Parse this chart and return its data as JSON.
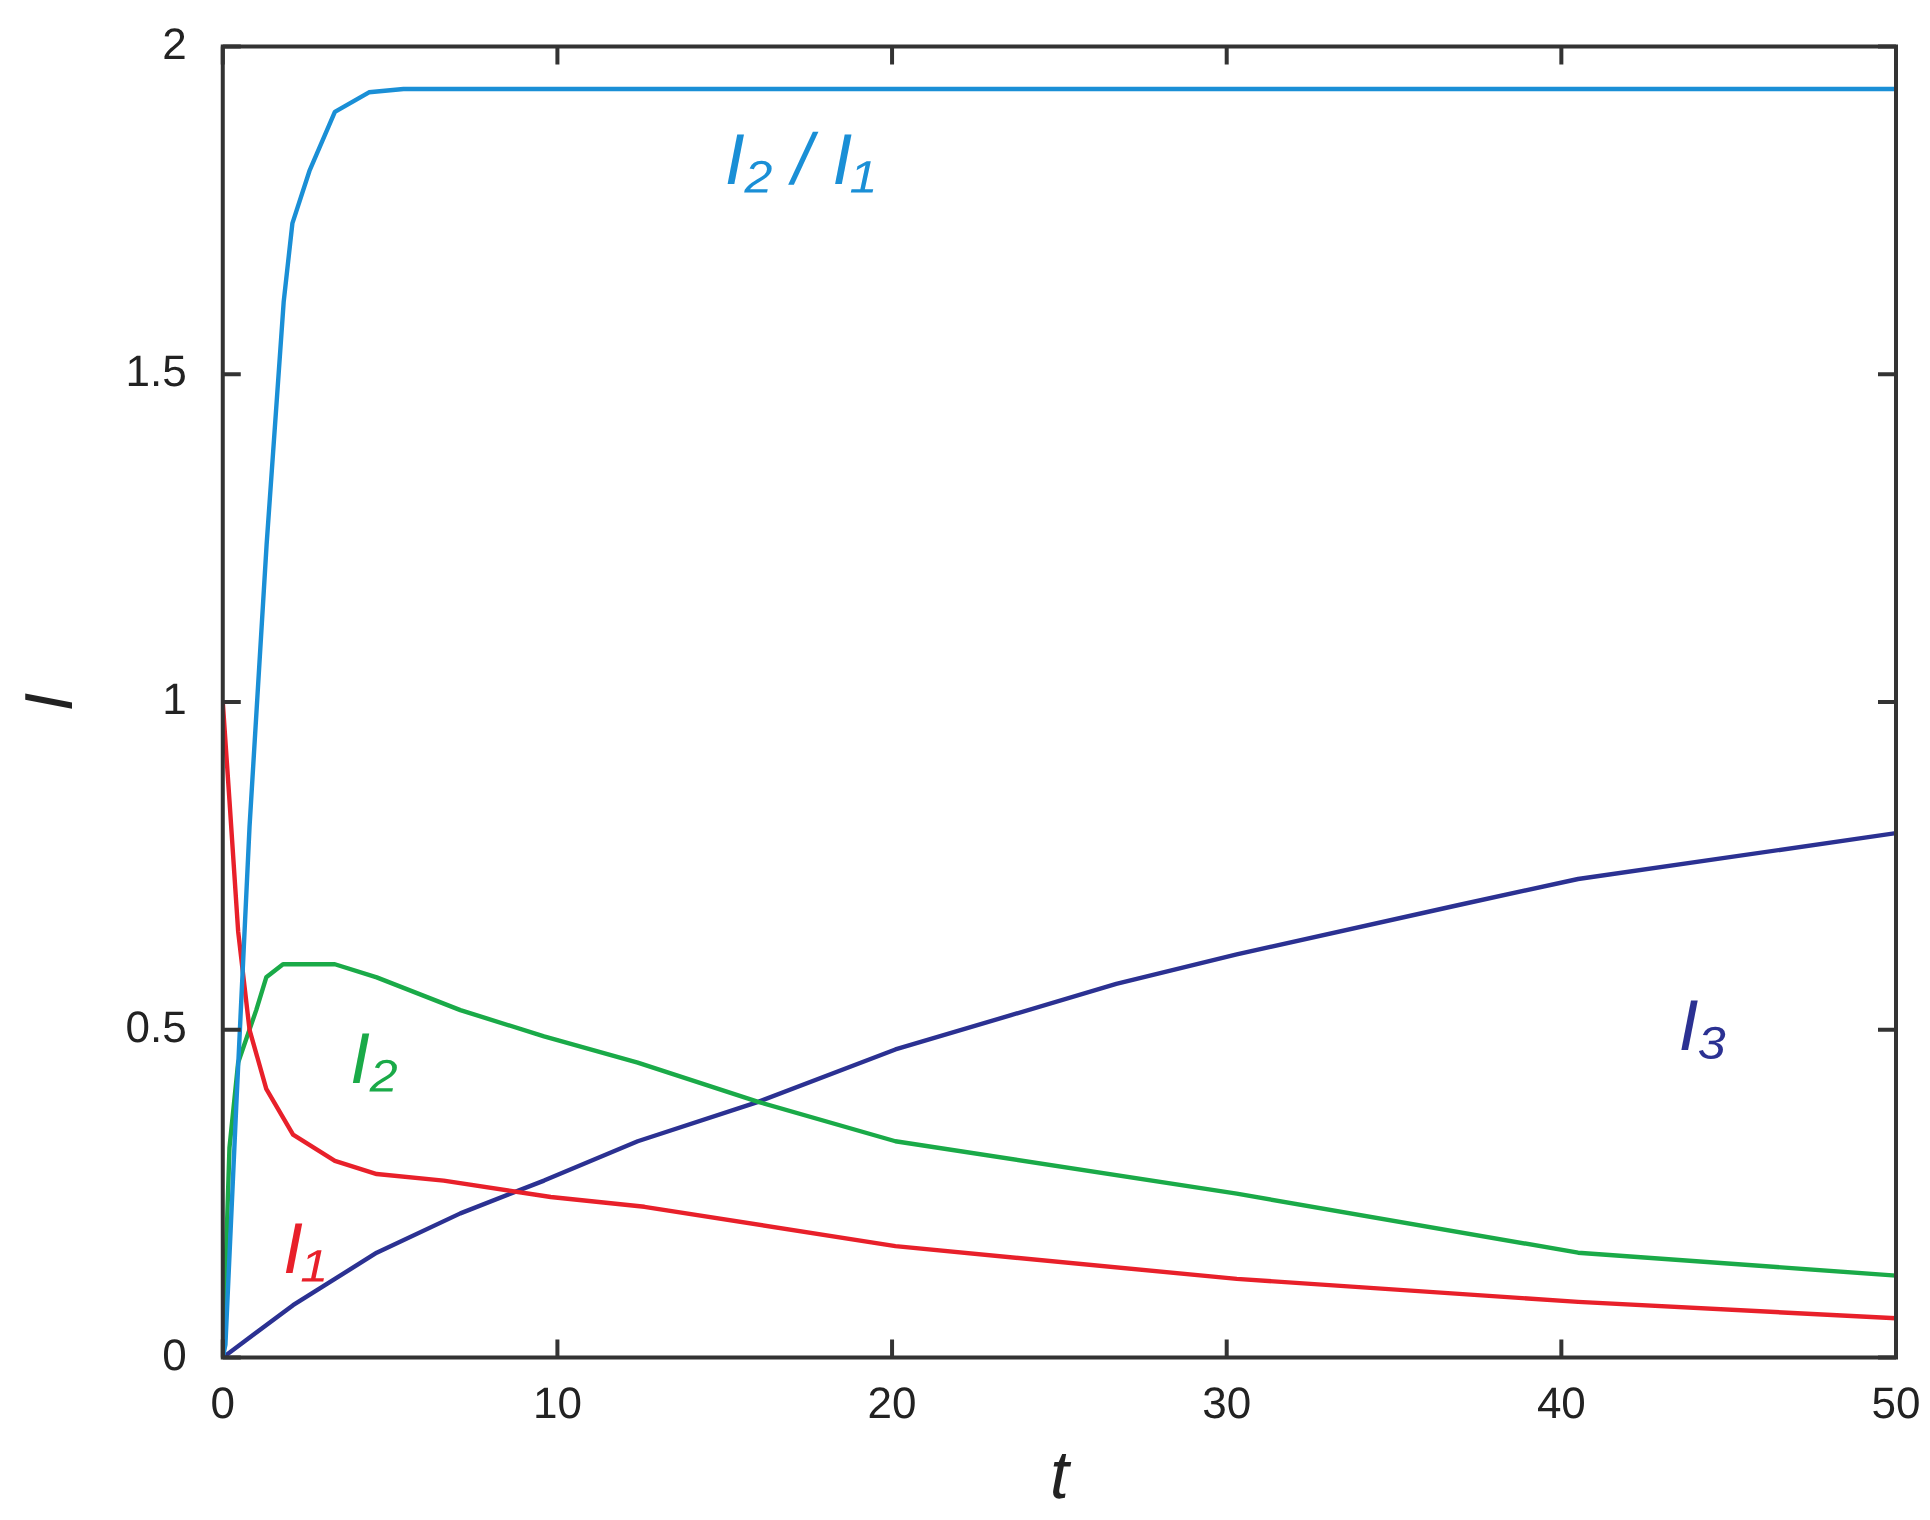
{
  "chart_data": {
    "type": "line",
    "xlabel": "t",
    "ylabel": "I",
    "xlim": [
      0,
      50
    ],
    "ylim": [
      0,
      2
    ],
    "xticks": [
      0,
      10,
      20,
      30,
      40,
      50
    ],
    "yticks": [
      0,
      0.5,
      1,
      1.5,
      2
    ],
    "grid": false,
    "legend": false,
    "marker": "none",
    "line_style": "solid",
    "series": [
      {
        "name": "I₂ / I₁",
        "color": "#1a8fd6",
        "x": [
          0,
          0.08,
          0.4,
          0.8,
          1.31,
          1.82,
          2.08,
          2.59,
          3.35,
          4.37,
          5.4,
          10,
          20,
          30,
          40,
          50
        ],
        "values": [
          0,
          0.02,
          0.38,
          0.81,
          1.24,
          1.61,
          1.73,
          1.81,
          1.9,
          1.93,
          1.935,
          1.935,
          1.935,
          1.935,
          1.935,
          1.935
        ]
      },
      {
        "name": "I₁",
        "color": "#e8202a",
        "x": [
          0,
          0.2,
          0.46,
          0.8,
          1.3,
          2.1,
          3.35,
          4.6,
          6.6,
          9.8,
          12.6,
          20.1,
          30.3,
          40.5,
          50
        ],
        "values": [
          1,
          0.85,
          0.65,
          0.5,
          0.41,
          0.34,
          0.3,
          0.28,
          0.27,
          0.245,
          0.23,
          0.17,
          0.12,
          0.085,
          0.06
        ]
      },
      {
        "name": "I₂",
        "color": "#1aaa48",
        "x": [
          0,
          0.2,
          0.46,
          1,
          1.3,
          1.8,
          3.35,
          4.6,
          7.1,
          9.6,
          12.4,
          16,
          20.1,
          30.3,
          40.5,
          50
        ],
        "values": [
          0,
          0.32,
          0.45,
          0.53,
          0.58,
          0.6,
          0.6,
          0.58,
          0.53,
          0.49,
          0.45,
          0.39,
          0.33,
          0.25,
          0.16,
          0.125
        ]
      },
      {
        "name": "I₃",
        "color": "#2b3192",
        "x": [
          0,
          2.1,
          4.6,
          7.1,
          9.6,
          12.4,
          16,
          20.1,
          26.7,
          30.3,
          36.9,
          40.5,
          50
        ],
        "values": [
          0,
          0.08,
          0.16,
          0.22,
          0.27,
          0.33,
          0.39,
          0.47,
          0.57,
          0.615,
          0.69,
          0.73,
          0.8
        ]
      }
    ]
  }
}
